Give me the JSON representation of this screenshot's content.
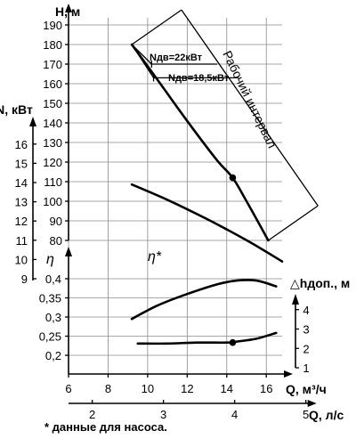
{
  "chart_data": {
    "type": "line",
    "axes": {
      "q_m3h": {
        "label": "Q, м³/ч",
        "range": [
          6,
          16.8
        ],
        "ticks": [
          6,
          8,
          10,
          12,
          14,
          16
        ]
      },
      "q_ls": {
        "label": "Q, л/с",
        "range": [
          1.667,
          4.667
        ],
        "ticks": [
          2,
          3,
          4,
          5
        ]
      },
      "head": {
        "label": "H, м",
        "range": [
          80,
          190
        ],
        "ticks": [
          80,
          90,
          100,
          110,
          120,
          130,
          140,
          150,
          160,
          170,
          180,
          190
        ]
      },
      "power": {
        "label": "N, кВт",
        "range": [
          9,
          16
        ],
        "ticks": [
          9,
          10,
          11,
          12,
          13,
          14,
          15,
          16
        ]
      },
      "efficiency": {
        "label": "η",
        "range": [
          0.15,
          0.42
        ],
        "ticks": [
          "0,2",
          "0,25",
          "0,3",
          "0,35",
          "0,4"
        ]
      },
      "npsh": {
        "label": "△hдоп., м",
        "range": [
          1,
          5
        ],
        "ticks": [
          1,
          2,
          3,
          4
        ]
      }
    },
    "grid": true,
    "series": [
      {
        "axis": "head",
        "x": [
          9.2,
          10.5,
          12,
          13.5,
          14.3,
          15,
          16.1
        ],
        "y": [
          180,
          162,
          141,
          121,
          112,
          100,
          80
        ]
      },
      {
        "axis": "power",
        "x": [
          9.2,
          11,
          13,
          15,
          16.8
        ],
        "y": [
          13.9,
          13.1,
          12.1,
          11.0,
          9.9
        ]
      },
      {
        "axis": "efficiency",
        "x": [
          9.2,
          10.5,
          12,
          13.5,
          14.5,
          15.5,
          16.5
        ],
        "y": [
          0.295,
          0.33,
          0.36,
          0.385,
          0.395,
          0.395,
          0.38
        ]
      },
      {
        "axis": "npsh",
        "x": [
          9.5,
          11,
          12.5,
          14,
          14.5,
          15.5,
          16.5
        ],
        "y": [
          2.25,
          2.25,
          2.3,
          2.3,
          2.35,
          2.5,
          2.8
        ]
      }
    ],
    "markers": [
      {
        "axis": "head",
        "x": 14.3,
        "y": 112
      },
      {
        "axis": "npsh",
        "x": 14.3,
        "y": 2.3
      }
    ],
    "working_range": {
      "label": "Рабочий интервал",
      "x": [
        9.2,
        16.1
      ]
    },
    "motor_power_lines": [
      {
        "label": "Nдв=22кВт",
        "x_start": 9.2,
        "x_end": 10.2,
        "y_start": 180,
        "y_end": 170
      },
      {
        "label": "Nдв=18,5кВт",
        "x_start": 9.2,
        "x_end": 10.3,
        "y_start": 180,
        "y_end": 163
      }
    ],
    "annotations": {
      "eta_star": "η*",
      "footnote": "* данные для насоса."
    }
  }
}
